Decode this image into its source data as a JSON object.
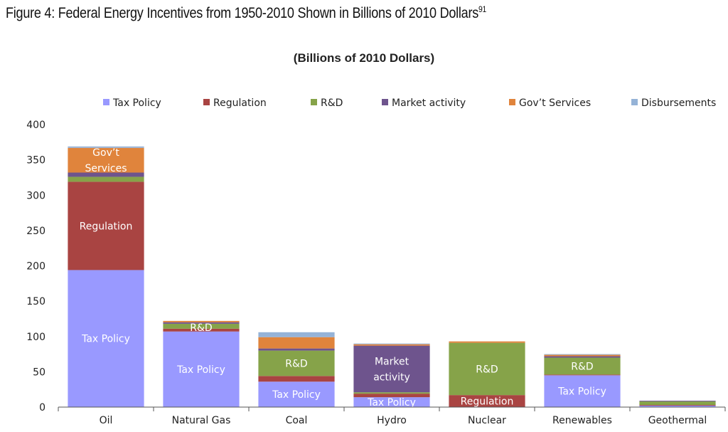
{
  "figure_title": "Figure 4: Federal Energy Incentives from 1950-2010 Shown in Billions of 2010 Dollars",
  "figure_footnote": "91",
  "chart_data": {
    "type": "bar",
    "stacked": true,
    "title": "(Billions of 2010 Dollars)",
    "xlabel": "",
    "ylabel": "",
    "ylim": [
      0,
      400
    ],
    "yticks": [
      0,
      50,
      100,
      150,
      200,
      250,
      300,
      350,
      400
    ],
    "grid": false,
    "legend_position": "top",
    "categories": [
      "Oil",
      "Natural Gas",
      "Coal",
      "Hydro",
      "Nuclear",
      "Renewables",
      "Geothermal"
    ],
    "series": [
      {
        "name": "Tax Policy",
        "color": "#9999ff",
        "values": [
          194,
          107,
          36,
          14,
          0,
          45,
          2
        ]
      },
      {
        "name": "Regulation",
        "color": "#a94442",
        "values": [
          125,
          4,
          8,
          5,
          17,
          1,
          1
        ]
      },
      {
        "name": "R&D",
        "color": "#86a349",
        "values": [
          7,
          7,
          36,
          2,
          74,
          24,
          5
        ]
      },
      {
        "name": "Market activity",
        "color": "#6e548d",
        "values": [
          6,
          2,
          3,
          66,
          0,
          2,
          1
        ]
      },
      {
        "name": "Gov't Services",
        "color": "#e0843c",
        "values": [
          35,
          2,
          16,
          2,
          2,
          2,
          0
        ]
      },
      {
        "name": "Disbursements",
        "color": "#95b3d7",
        "values": [
          2,
          0,
          7,
          1,
          0,
          1,
          0
        ]
      }
    ],
    "annotations": [
      {
        "category": "Oil",
        "series": "Gov't Services",
        "text": [
          "Gov’t",
          "Services"
        ]
      },
      {
        "category": "Oil",
        "series": "Regulation",
        "text": [
          "Regulation"
        ]
      },
      {
        "category": "Oil",
        "series": "Tax Policy",
        "text": [
          "Tax Policy"
        ]
      },
      {
        "category": "Natural Gas",
        "series": "R&D",
        "text": [
          "R&D"
        ]
      },
      {
        "category": "Natural Gas",
        "series": "Tax Policy",
        "text": [
          "Tax Policy"
        ]
      },
      {
        "category": "Coal",
        "series": "R&D",
        "text": [
          "R&D"
        ]
      },
      {
        "category": "Coal",
        "series": "Tax Policy",
        "text": [
          "Tax Policy"
        ]
      },
      {
        "category": "Hydro",
        "series": "Market activity",
        "text": [
          "Market",
          "activity"
        ]
      },
      {
        "category": "Hydro",
        "series": "Tax Policy",
        "text": [
          "Tax Policy"
        ]
      },
      {
        "category": "Nuclear",
        "series": "R&D",
        "text": [
          "R&D"
        ]
      },
      {
        "category": "Nuclear",
        "series": "Regulation",
        "text": [
          "Regulation"
        ]
      },
      {
        "category": "Renewables",
        "series": "R&D",
        "text": [
          "R&D"
        ]
      },
      {
        "category": "Renewables",
        "series": "Tax Policy",
        "text": [
          "Tax Policy"
        ]
      }
    ]
  }
}
